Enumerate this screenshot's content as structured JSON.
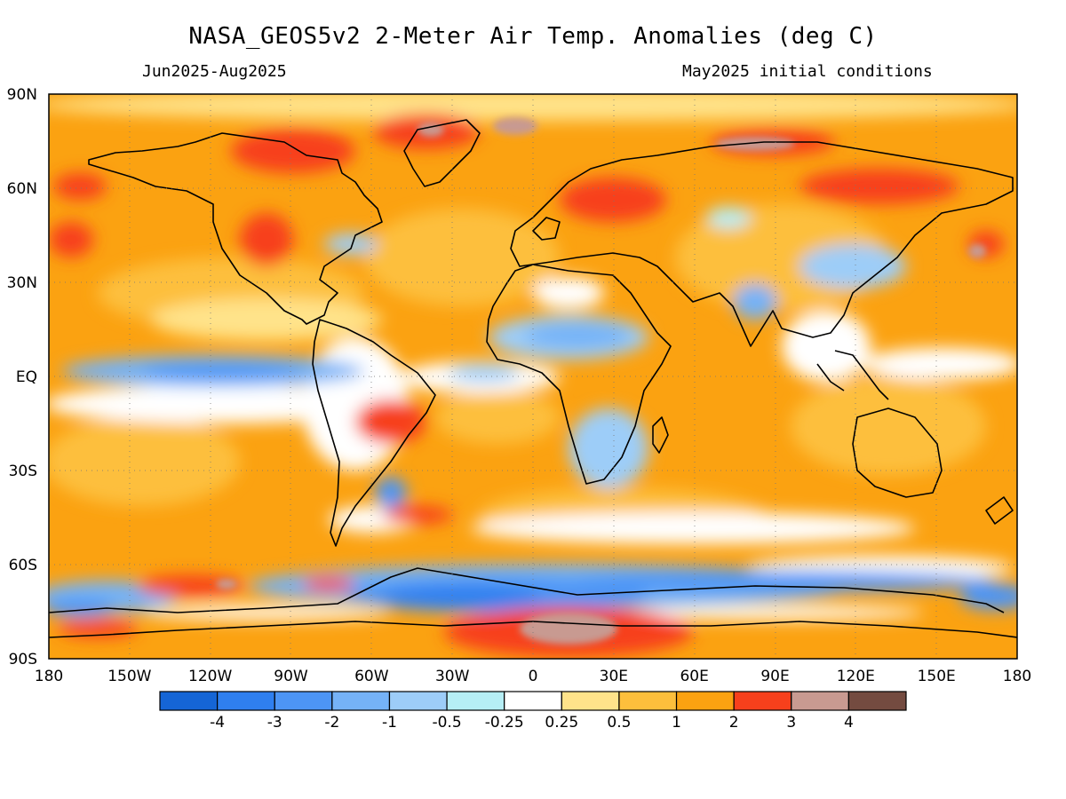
{
  "header": {
    "title": "NASA_GEOS5v2 2-Meter Air Temp. Anomalies (deg C)",
    "period": "Jun2025-Aug2025",
    "initial_conditions": "May2025 initial conditions"
  },
  "axes": {
    "lon_labels": [
      "180",
      "150W",
      "120W",
      "90W",
      "60W",
      "30W",
      "0",
      "30E",
      "60E",
      "90E",
      "120E",
      "150E",
      "180"
    ],
    "lat_labels": [
      "90N",
      "60N",
      "30N",
      "EQ",
      "30S",
      "60S",
      "90S"
    ]
  },
  "legend": {
    "colors": [
      "#1565d6",
      "#2f7fef",
      "#4d95f5",
      "#75b2f7",
      "#9dcdf8",
      "#b6eef5",
      "#ffffff",
      "#ffe38a",
      "#fdbf3c",
      "#fba211",
      "#f7401c",
      "#c89a91",
      "#744b40"
    ],
    "labels": [
      "-4",
      "-3",
      "-2",
      "-1",
      "-0.5",
      "-0.25",
      "0.25",
      "0.5",
      "1",
      "2",
      "3",
      "4"
    ]
  },
  "map": {
    "lon_range": [
      -180,
      180
    ],
    "lat_range": [
      -90,
      90
    ],
    "grid": true
  }
}
